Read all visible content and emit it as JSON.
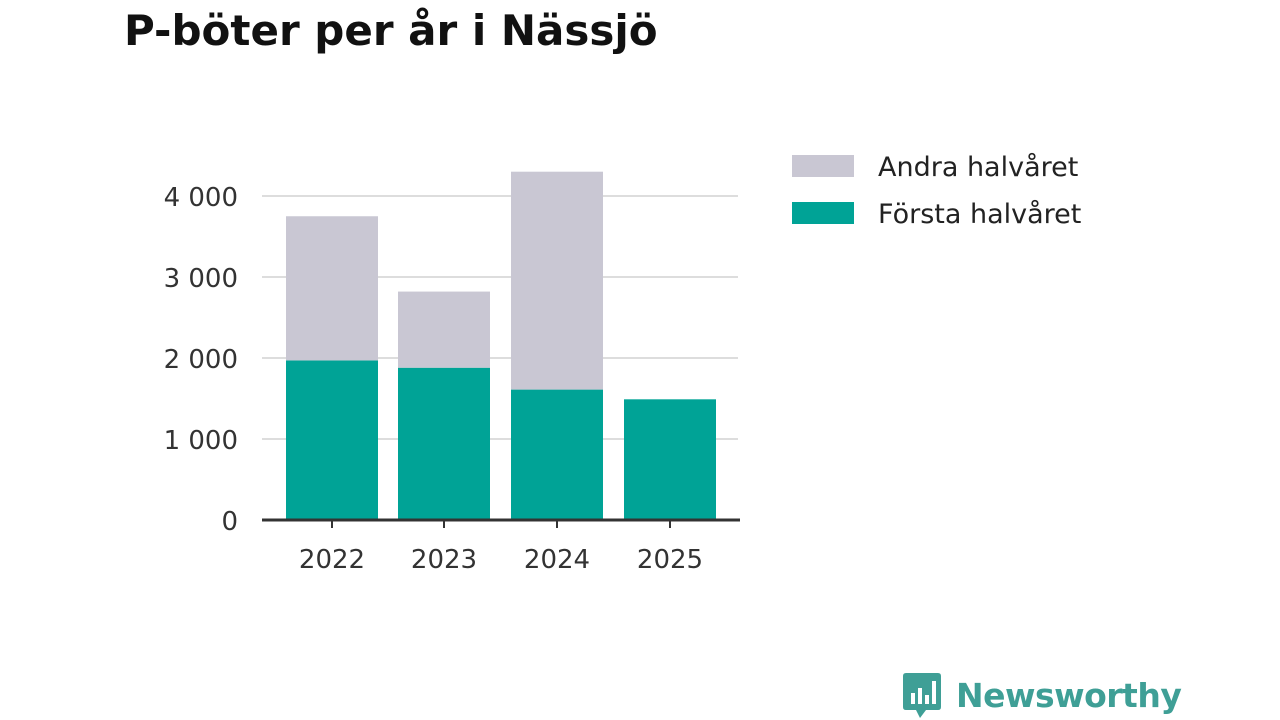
{
  "title": "P-böter per år i Nässjö",
  "brand": {
    "name": "Newsworthy",
    "color": "#3f9f96",
    "icon": "newsworthy-chart-bubble-icon"
  },
  "colors": {
    "first_half": "#00a396",
    "second_half": "#c9c7d3",
    "grid": "#dddddd",
    "axis": "#333333"
  },
  "chart_data": {
    "type": "bar",
    "stacked": true,
    "title": "P-böter per år i Nässjö",
    "categories": [
      "2022",
      "2023",
      "2024",
      "2025"
    ],
    "series": [
      {
        "name": "Första halvåret",
        "values": [
          1970,
          1880,
          1610,
          1490
        ]
      },
      {
        "name": "Andra halvåret",
        "values": [
          1780,
          940,
          2690,
          0
        ]
      }
    ],
    "y_ticks": [
      0,
      1000,
      2000,
      3000,
      4000
    ],
    "y_tick_labels": [
      "0",
      "1 000",
      "2 000",
      "3 000",
      "4 000"
    ],
    "ylim": [
      0,
      4400
    ],
    "xlabel": "",
    "ylabel": "",
    "legend": [
      "Andra halvåret",
      "Första halvåret"
    ],
    "legend_position": "right",
    "grid": true
  }
}
